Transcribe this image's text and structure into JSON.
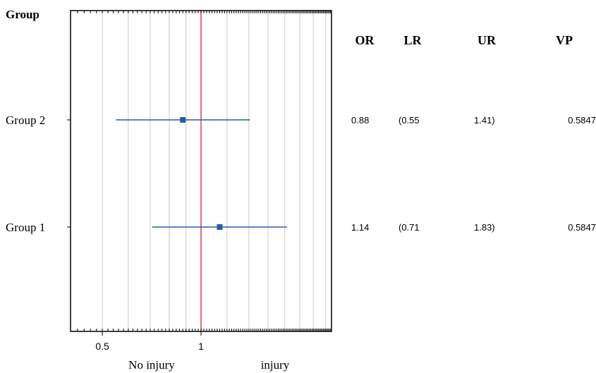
{
  "chart_data": {
    "type": "forest",
    "corner_label": "Group",
    "x_scale": "log",
    "x_range": [
      0.4,
      2.5
    ],
    "x_ticks": [
      {
        "value": 0.5,
        "label": "0.5"
      },
      {
        "value": 1,
        "label": "1"
      }
    ],
    "reference_value": 1,
    "reference_color": "#e03030",
    "marker_color": "#2a5caa",
    "x_annotations": [
      "No injury",
      "injury"
    ],
    "column_headers": [
      "OR",
      "LR",
      "UR",
      "VP"
    ],
    "rows": [
      {
        "label": "Group 2",
        "or": 0.88,
        "lower": 0.55,
        "upper": 1.41,
        "or_text": "0.88",
        "lower_text": "(0.55",
        "upper_text": "1.41)",
        "vp_text": "0.5847"
      },
      {
        "label": "Group 1",
        "or": 1.14,
        "lower": 0.71,
        "upper": 1.83,
        "or_text": "1.14",
        "lower_text": "(0.71",
        "upper_text": "1.83)",
        "vp_text": "0.5847"
      }
    ]
  }
}
